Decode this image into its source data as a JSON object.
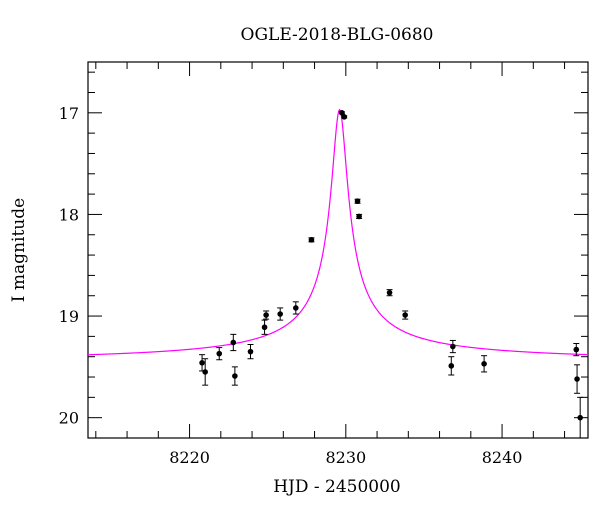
{
  "chart_data": {
    "type": "scatter",
    "title": "OGLE-2018-BLG-0680",
    "xlabel": "HJD - 2450000",
    "ylabel": "I magnitude",
    "xlim": [
      8213.5,
      8245.5
    ],
    "ylim": [
      20.2,
      16.5
    ],
    "y_inverted": true,
    "grid": false,
    "x_ticks": [
      8220,
      8230,
      8240
    ],
    "y_ticks": [
      17,
      18,
      19,
      20
    ],
    "x_minor_step": 2,
    "y_minor_step": 0.2,
    "series": [
      {
        "kind": "points_with_errorbars",
        "color": "#000000",
        "points": [
          {
            "x": 8220.8,
            "y": 19.46,
            "err": 0.08
          },
          {
            "x": 8221.0,
            "y": 19.55,
            "err": 0.13
          },
          {
            "x": 8221.9,
            "y": 19.37,
            "err": 0.06
          },
          {
            "x": 8222.8,
            "y": 19.26,
            "err": 0.08
          },
          {
            "x": 8222.9,
            "y": 19.59,
            "err": 0.09
          },
          {
            "x": 8223.9,
            "y": 19.35,
            "err": 0.07
          },
          {
            "x": 8224.8,
            "y": 19.11,
            "err": 0.07
          },
          {
            "x": 8224.9,
            "y": 18.99,
            "err": 0.04
          },
          {
            "x": 8225.8,
            "y": 18.98,
            "err": 0.06
          },
          {
            "x": 8226.8,
            "y": 18.92,
            "err": 0.06
          },
          {
            "x": 8227.8,
            "y": 18.25,
            "err": 0.02
          },
          {
            "x": 8229.75,
            "y": 17.0,
            "err": 0.01
          },
          {
            "x": 8229.9,
            "y": 17.04,
            "err": 0.01
          },
          {
            "x": 8230.75,
            "y": 17.87,
            "err": 0.02
          },
          {
            "x": 8230.85,
            "y": 18.02,
            "err": 0.02
          },
          {
            "x": 8232.8,
            "y": 18.77,
            "err": 0.03
          },
          {
            "x": 8233.8,
            "y": 18.99,
            "err": 0.04
          },
          {
            "x": 8236.75,
            "y": 19.49,
            "err": 0.09
          },
          {
            "x": 8236.85,
            "y": 19.3,
            "err": 0.06
          },
          {
            "x": 8238.85,
            "y": 19.47,
            "err": 0.08
          },
          {
            "x": 8244.75,
            "y": 19.33,
            "err": 0.06
          },
          {
            "x": 8244.8,
            "y": 19.62,
            "err": 0.14
          },
          {
            "x": 8245.0,
            "y": 20.0,
            "err": 0.2
          }
        ]
      },
      {
        "kind": "model_curve",
        "color": "#ff00ff",
        "model": {
          "t0": 8229.6,
          "baseline": 19.46,
          "peak": 16.97,
          "width": 1.45
        }
      }
    ]
  }
}
